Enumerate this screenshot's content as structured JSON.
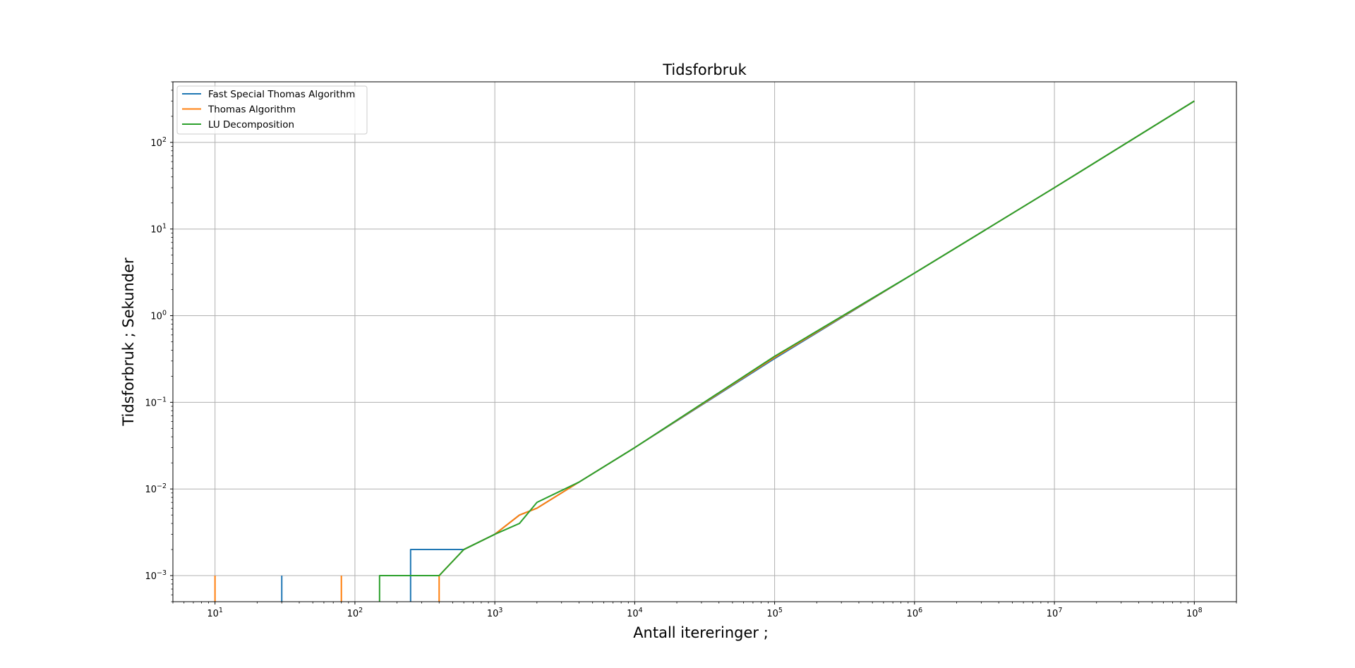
{
  "chart_data": {
    "type": "line",
    "title": "Tidsforbruk",
    "xlabel": "Antall itereringer ;",
    "ylabel": "Tidsforbruk ; Sekunder",
    "xscale": "log",
    "yscale": "log",
    "xlim": [
      5,
      200000000
    ],
    "ylim": [
      0.0005,
      500
    ],
    "grid": true,
    "legend_position": "upper-left",
    "x_ticks": [
      {
        "base": "10",
        "exp": "1",
        "value": 10
      },
      {
        "base": "10",
        "exp": "2",
        "value": 100
      },
      {
        "base": "10",
        "exp": "3",
        "value": 1000
      },
      {
        "base": "10",
        "exp": "4",
        "value": 10000
      },
      {
        "base": "10",
        "exp": "5",
        "value": 100000
      },
      {
        "base": "10",
        "exp": "6",
        "value": 1000000
      },
      {
        "base": "10",
        "exp": "7",
        "value": 10000000
      },
      {
        "base": "10",
        "exp": "8",
        "value": 100000000
      }
    ],
    "y_ticks": [
      {
        "base": "10",
        "exp": "−3",
        "value": 0.001
      },
      {
        "base": "10",
        "exp": "−2",
        "value": 0.01
      },
      {
        "base": "10",
        "exp": "−1",
        "value": 0.1
      },
      {
        "base": "10",
        "exp": "0",
        "value": 1
      },
      {
        "base": "10",
        "exp": "1",
        "value": 10
      },
      {
        "base": "10",
        "exp": "2",
        "value": 100
      }
    ],
    "series": [
      {
        "name": "Fast Special Thomas Algorithm",
        "color": "#1f77b4",
        "segments": [
          [
            [
              30,
              0.0005
            ],
            [
              30,
              0.001
            ]
          ],
          [
            [
              250,
              0.0005
            ],
            [
              250,
              0.002
            ],
            [
              600,
              0.002
            ],
            [
              1000,
              0.003
            ],
            [
              1500,
              0.005
            ],
            [
              2000,
              0.006
            ],
            [
              4000,
              0.012
            ],
            [
              10000,
              0.03
            ],
            [
              100000,
              0.32
            ],
            [
              1000000,
              3.1
            ],
            [
              10000000,
              30
            ],
            [
              100000000,
              300
            ]
          ]
        ]
      },
      {
        "name": "Thomas Algorithm",
        "color": "#ff7f0e",
        "segments": [
          [
            [
              10,
              0.0005
            ],
            [
              10,
              0.001
            ]
          ],
          [
            [
              80,
              0.0005
            ],
            [
              80,
              0.001
            ]
          ],
          [
            [
              400,
              0.0005
            ],
            [
              400,
              0.001
            ],
            [
              600,
              0.002
            ],
            [
              1000,
              0.003
            ],
            [
              1500,
              0.005
            ],
            [
              2000,
              0.006
            ],
            [
              4000,
              0.012
            ],
            [
              10000,
              0.03
            ],
            [
              100000,
              0.33
            ],
            [
              1000000,
              3.1
            ],
            [
              10000000,
              30
            ],
            [
              100000000,
              300
            ]
          ]
        ]
      },
      {
        "name": "LU Decomposition",
        "color": "#2ca02c",
        "segments": [
          [
            [
              150,
              0.0005
            ],
            [
              150,
              0.001
            ],
            [
              400,
              0.001
            ],
            [
              600,
              0.002
            ],
            [
              1000,
              0.003
            ],
            [
              1500,
              0.004
            ],
            [
              2000,
              0.007
            ],
            [
              4000,
              0.012
            ],
            [
              10000,
              0.03
            ],
            [
              100000,
              0.34
            ],
            [
              1000000,
              3.1
            ],
            [
              10000000,
              30
            ],
            [
              100000000,
              300
            ]
          ]
        ]
      }
    ]
  }
}
